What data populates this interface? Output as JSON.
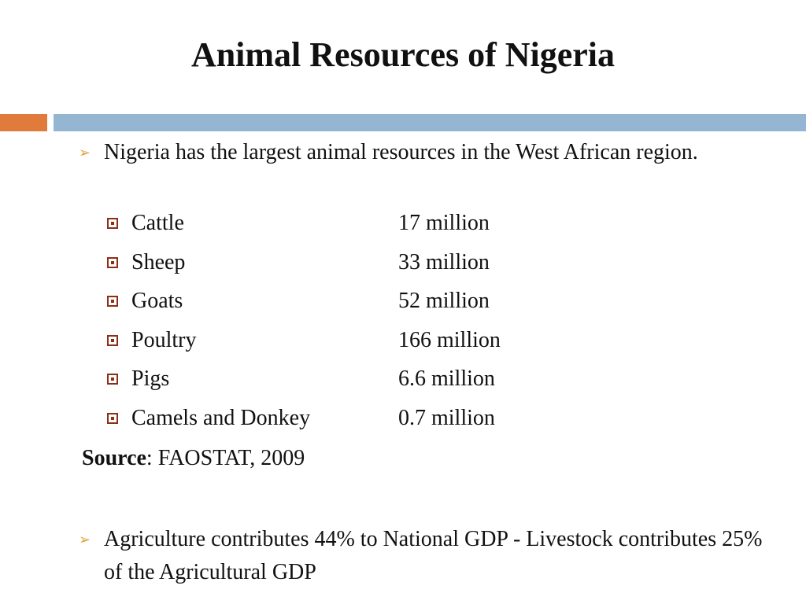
{
  "slide": {
    "title": "Animal Resources of Nigeria",
    "colors": {
      "accent_orange": "#e07b3c",
      "accent_blue": "#94b6d2",
      "bullet_arrow": "#e0a23c",
      "sub_bullet": "#8b2f17"
    },
    "bullets": [
      {
        "icon": "arrow-bullet-icon",
        "text": "Nigeria has the largest animal resources in the West African region."
      },
      {
        "icon": "arrow-bullet-icon",
        "text": "Agriculture contributes 44% to National GDP -  Livestock contributes 25% of the Agricultural GDP"
      }
    ],
    "livestock": [
      {
        "animal": "Cattle",
        "count": "17 million"
      },
      {
        "animal": "Sheep",
        "count": "33 million"
      },
      {
        "animal": "Goats",
        "count": "52 million"
      },
      {
        "animal": "Poultry",
        "count": "166 million"
      },
      {
        "animal": "Pigs",
        "count": "6.6 million"
      },
      {
        "animal": "Camels and Donkey",
        "count": "0.7 million"
      }
    ],
    "source": {
      "label": "Source",
      "separator": ": ",
      "value": "FAOSTAT, 2009"
    }
  }
}
